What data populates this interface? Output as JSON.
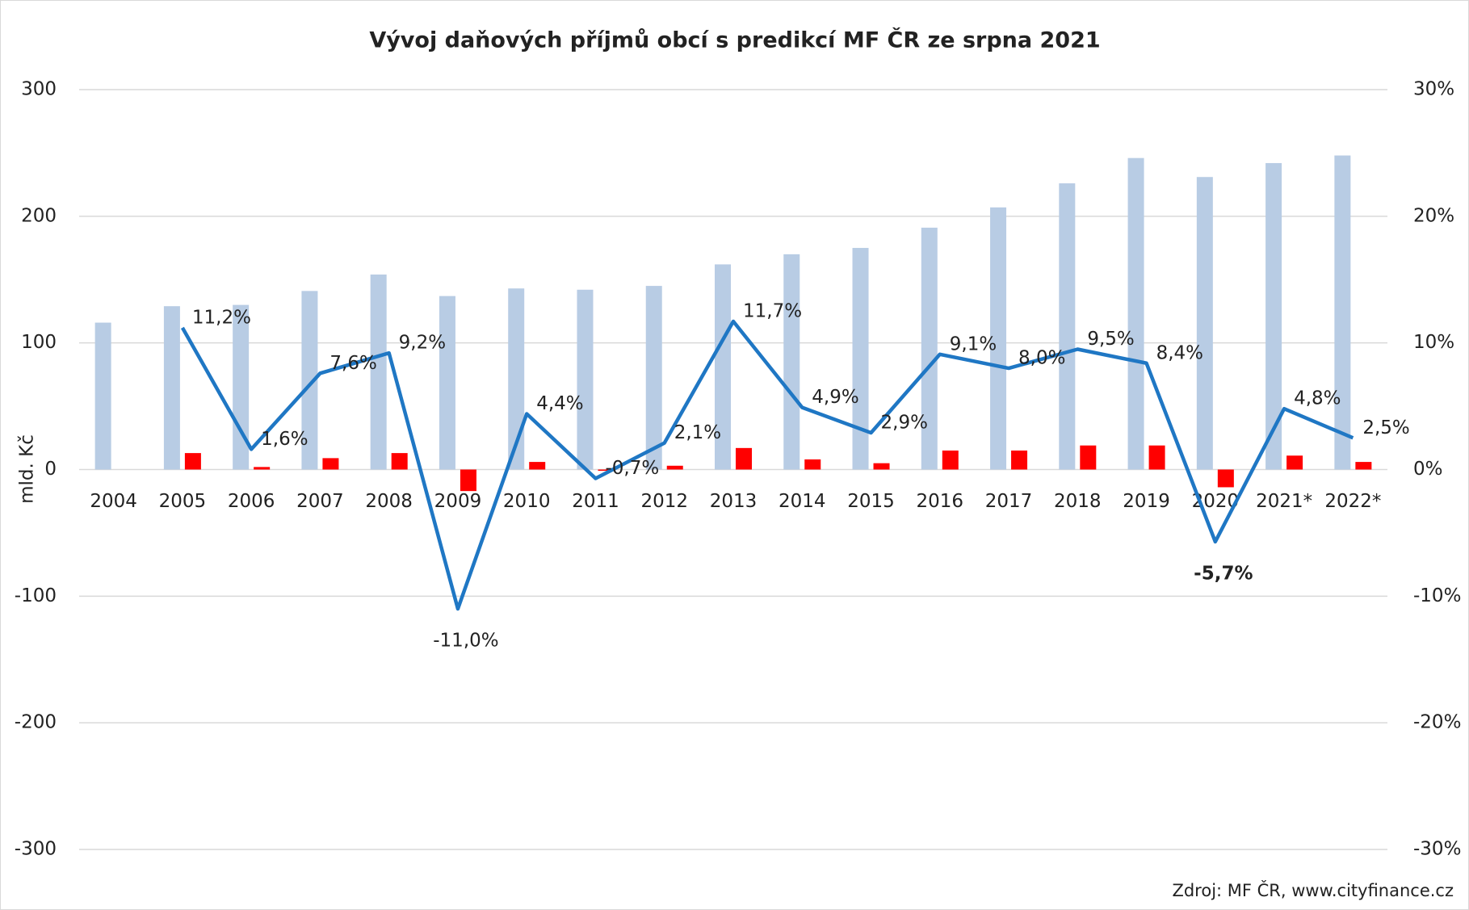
{
  "chart_data": {
    "type": "bar-line",
    "title": "Vývoj daňových příjmů obcí s predikcí MF ČR ze srpna 2021",
    "ylabel": "mld. Kč",
    "source": "Zdroj: MF ČR, www.cityfinance.cz",
    "categories": [
      "2004",
      "2005",
      "2006",
      "2007",
      "2008",
      "2009",
      "2010",
      "2011",
      "2012",
      "2013",
      "2014",
      "2015",
      "2016",
      "2017",
      "2018",
      "2019",
      "2020",
      "2021*",
      "2022*"
    ],
    "series": [
      {
        "type": "bar",
        "color": "#b8cce4",
        "values": [
          116,
          129,
          130,
          141,
          154,
          137,
          143,
          142,
          145,
          162,
          170,
          175,
          191,
          207,
          226,
          246,
          231,
          242,
          248
        ]
      },
      {
        "type": "bar",
        "color": "#ff0000",
        "values": [
          null,
          13,
          2,
          9,
          13,
          -17,
          6,
          -1,
          3,
          17,
          8,
          5,
          15,
          15,
          19,
          19,
          -14,
          11,
          6
        ]
      },
      {
        "type": "line",
        "axis": "y2",
        "color": "#1f77c4",
        "values": [
          null,
          11.2,
          1.6,
          7.6,
          9.2,
          -11.0,
          4.4,
          -0.7,
          2.1,
          11.7,
          4.9,
          2.9,
          9.1,
          8.0,
          9.5,
          8.4,
          -5.7,
          4.8,
          2.5
        ],
        "value_labels": [
          null,
          "11,2%",
          "1,6%",
          "7,6%",
          "9,2%",
          "-11,0%",
          "4,4%",
          "-0,7%",
          "2,1%",
          "11,7%",
          "4,9%",
          "2,9%",
          "9,1%",
          "8,0%",
          "9,5%",
          "8,4%",
          "-5,7%",
          "4,8%",
          "2,5%"
        ]
      }
    ],
    "ylim": [
      -300,
      300
    ],
    "yticks": [
      -300,
      -200,
      -100,
      0,
      100,
      200,
      300
    ],
    "y2lim": [
      -30,
      30
    ],
    "y2ticks": [
      {
        "value": -30,
        "label": "-30%"
      },
      {
        "value": -20,
        "label": "-20%"
      },
      {
        "value": -10,
        "label": "-10%"
      },
      {
        "value": 0,
        "label": "0%"
      },
      {
        "value": 10,
        "label": "10%"
      },
      {
        "value": 20,
        "label": "20%"
      },
      {
        "value": 30,
        "label": "30%"
      }
    ],
    "grid": true
  }
}
